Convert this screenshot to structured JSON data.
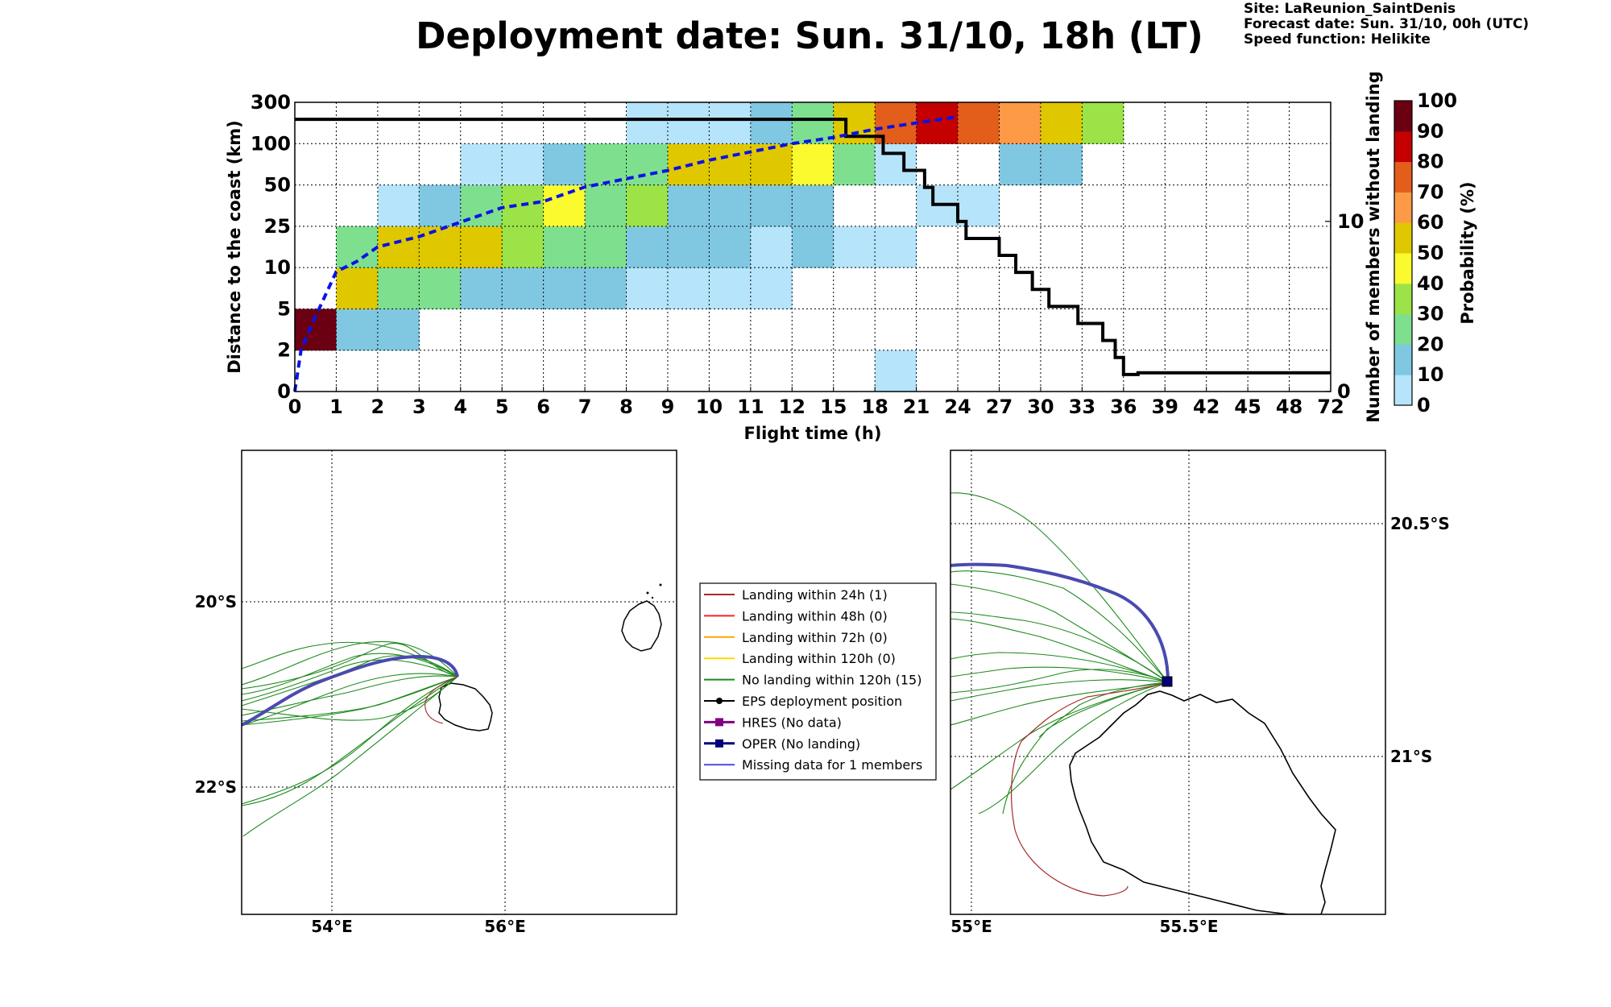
{
  "title": "Deployment date: Sun. 31/10, 18h (LT)",
  "site_info": {
    "site": "Site: LaReunion_SaintDenis",
    "forecast": "Forecast date: Sun. 31/10, 00h (UTC)",
    "speed": "Speed function: Helikite"
  },
  "chart_data": [
    {
      "type": "heatmap",
      "xlabel": "Flight time (h)",
      "ylabel": "Distance to the coast (km)",
      "y2label": "Number of members without landing",
      "colorbar_label": "Probability (%)",
      "x_ticks": [
        "0",
        "1",
        "2",
        "3",
        "4",
        "5",
        "6",
        "7",
        "8",
        "9",
        "10",
        "11",
        "12",
        "15",
        "18",
        "21",
        "24",
        "27",
        "30",
        "33",
        "36",
        "39",
        "42",
        "45",
        "48",
        "72"
      ],
      "y_ticks": [
        "0",
        "2",
        "5",
        "10",
        "25",
        "50",
        "100",
        "300"
      ],
      "y2_ticks": [
        "0",
        "10"
      ],
      "y2_range": [
        0,
        17
      ],
      "colorbar_ticks": [
        "0",
        "10",
        "20",
        "30",
        "40",
        "50",
        "60",
        "70",
        "80",
        "90",
        "100"
      ],
      "colorbar_colors": [
        "#b6e4fb",
        "#80c8e2",
        "#7ee08f",
        "#9be347",
        "#fafa2e",
        "#e0c800",
        "#fc9a46",
        "#e35d1b",
        "#c40000",
        "#6b0012"
      ],
      "grid": true,
      "cells": [
        {
          "x": 0,
          "y": 1,
          "v": 95
        },
        {
          "x": 1,
          "y": 1,
          "v": 15
        },
        {
          "x": 2,
          "y": 1,
          "v": 15
        },
        {
          "x": 1,
          "y": 2,
          "v": 55
        },
        {
          "x": 2,
          "y": 2,
          "v": 25
        },
        {
          "x": 3,
          "y": 2,
          "v": 25
        },
        {
          "x": 4,
          "y": 2,
          "v": 15
        },
        {
          "x": 5,
          "y": 2,
          "v": 15
        },
        {
          "x": 6,
          "y": 2,
          "v": 15
        },
        {
          "x": 7,
          "y": 2,
          "v": 15
        },
        {
          "x": 8,
          "y": 2,
          "v": 5
        },
        {
          "x": 9,
          "y": 2,
          "v": 5
        },
        {
          "x": 10,
          "y": 2,
          "v": 5
        },
        {
          "x": 11,
          "y": 2,
          "v": 5
        },
        {
          "x": 1,
          "y": 3,
          "v": 25
        },
        {
          "x": 2,
          "y": 3,
          "v": 55
        },
        {
          "x": 3,
          "y": 3,
          "v": 55
        },
        {
          "x": 4,
          "y": 3,
          "v": 55
        },
        {
          "x": 5,
          "y": 3,
          "v": 35
        },
        {
          "x": 6,
          "y": 3,
          "v": 25
        },
        {
          "x": 7,
          "y": 3,
          "v": 25
        },
        {
          "x": 8,
          "y": 3,
          "v": 15
        },
        {
          "x": 9,
          "y": 3,
          "v": 15
        },
        {
          "x": 10,
          "y": 3,
          "v": 15
        },
        {
          "x": 11,
          "y": 3,
          "v": 5
        },
        {
          "x": 12,
          "y": 3,
          "v": 15
        },
        {
          "x": 13,
          "y": 3,
          "v": 5
        },
        {
          "x": 14,
          "y": 3,
          "v": 5
        },
        {
          "x": 2,
          "y": 4,
          "v": 5
        },
        {
          "x": 3,
          "y": 4,
          "v": 15
        },
        {
          "x": 4,
          "y": 4,
          "v": 25
        },
        {
          "x": 5,
          "y": 4,
          "v": 35
        },
        {
          "x": 6,
          "y": 4,
          "v": 45
        },
        {
          "x": 7,
          "y": 4,
          "v": 25
        },
        {
          "x": 8,
          "y": 4,
          "v": 35
        },
        {
          "x": 9,
          "y": 4,
          "v": 15
        },
        {
          "x": 10,
          "y": 4,
          "v": 15
        },
        {
          "x": 11,
          "y": 4,
          "v": 15
        },
        {
          "x": 12,
          "y": 4,
          "v": 15
        },
        {
          "x": 15,
          "y": 4,
          "v": 5
        },
        {
          "x": 16,
          "y": 4,
          "v": 5
        },
        {
          "x": 4,
          "y": 5,
          "v": 5
        },
        {
          "x": 5,
          "y": 5,
          "v": 5
        },
        {
          "x": 6,
          "y": 5,
          "v": 15
        },
        {
          "x": 7,
          "y": 5,
          "v": 25
        },
        {
          "x": 8,
          "y": 5,
          "v": 25
        },
        {
          "x": 9,
          "y": 5,
          "v": 55
        },
        {
          "x": 10,
          "y": 5,
          "v": 55
        },
        {
          "x": 11,
          "y": 5,
          "v": 55
        },
        {
          "x": 12,
          "y": 5,
          "v": 45
        },
        {
          "x": 13,
          "y": 5,
          "v": 25
        },
        {
          "x": 14,
          "y": 5,
          "v": 5
        },
        {
          "x": 17,
          "y": 5,
          "v": 15
        },
        {
          "x": 18,
          "y": 5,
          "v": 15
        },
        {
          "x": 8,
          "y": 6,
          "v": 5
        },
        {
          "x": 9,
          "y": 6,
          "v": 5
        },
        {
          "x": 10,
          "y": 6,
          "v": 5
        },
        {
          "x": 11,
          "y": 6,
          "v": 15
        },
        {
          "x": 12,
          "y": 6,
          "v": 25
        },
        {
          "x": 13,
          "y": 6,
          "v": 55
        },
        {
          "x": 14,
          "y": 6,
          "v": 75
        },
        {
          "x": 15,
          "y": 6,
          "v": 85
        },
        {
          "x": 16,
          "y": 6,
          "v": 75
        },
        {
          "x": 17,
          "y": 6,
          "v": 65
        },
        {
          "x": 18,
          "y": 6,
          "v": 55
        },
        {
          "x": 19,
          "y": 6,
          "v": 35
        },
        {
          "x": 14,
          "y": 0,
          "v": 5
        }
      ],
      "series": [
        {
          "name_hidden": true,
          "kind": "median",
          "y_axis": "left",
          "style": "blue-dashed",
          "points": [
            [
              0,
              0
            ],
            [
              0.15,
              1
            ],
            [
              0.4,
              1.6
            ],
            [
              1,
              2.9
            ],
            [
              1.5,
              3.15
            ],
            [
              2,
              3.5
            ],
            [
              3,
              3.75
            ],
            [
              4,
              4.1
            ],
            [
              5,
              4.45
            ],
            [
              6,
              4.6
            ],
            [
              7,
              4.95
            ],
            [
              8,
              5.15
            ],
            [
              9,
              5.35
            ],
            [
              10,
              5.6
            ],
            [
              11,
              5.8
            ],
            [
              12,
              6.0
            ],
            [
              13,
              6.15
            ],
            [
              14,
              6.35
            ],
            [
              15,
              6.5
            ],
            [
              16,
              6.65
            ]
          ]
        },
        {
          "name_hidden": true,
          "kind": "members",
          "y_axis": "right",
          "style": "black-step",
          "points": [
            [
              0,
              16
            ],
            [
              13.3,
              16
            ],
            [
              13.3,
              15
            ],
            [
              14.2,
              15
            ],
            [
              14.2,
              14
            ],
            [
              14.7,
              14
            ],
            [
              14.7,
              13
            ],
            [
              15.2,
              13
            ],
            [
              15.2,
              12
            ],
            [
              15.4,
              12
            ],
            [
              15.4,
              11
            ],
            [
              16,
              11
            ],
            [
              16,
              10
            ],
            [
              16.2,
              10
            ],
            [
              16.2,
              9
            ],
            [
              17,
              9
            ],
            [
              17,
              8
            ],
            [
              17.4,
              8
            ],
            [
              17.4,
              7
            ],
            [
              17.8,
              7
            ],
            [
              17.8,
              6
            ],
            [
              18.2,
              6
            ],
            [
              18.2,
              5
            ],
            [
              18.9,
              5
            ],
            [
              18.9,
              4
            ],
            [
              19.5,
              4
            ],
            [
              19.5,
              3
            ],
            [
              19.8,
              3
            ],
            [
              19.8,
              2
            ],
            [
              20,
              2
            ],
            [
              20,
              1
            ],
            [
              20.35,
              1
            ],
            [
              20.35,
              1.1
            ],
            [
              25,
              1.1
            ]
          ]
        }
      ]
    },
    {
      "type": "map",
      "lon_ticks": [
        "54°E",
        "56°E"
      ],
      "lat_ticks": [
        "20°S",
        "22°S"
      ]
    },
    {
      "type": "map",
      "lon_ticks": [
        "55°E",
        "55.5°E"
      ],
      "lat_ticks": [
        "20.5°S",
        "21°S"
      ]
    }
  ],
  "legend": {
    "items": [
      {
        "label": "Landing within 24h (1)",
        "color": "#a52a2a",
        "marker": "none"
      },
      {
        "label": "Landing within 48h (0)",
        "color": "#ff2020",
        "marker": "none"
      },
      {
        "label": "Landing within 72h (0)",
        "color": "#ffa500",
        "marker": "none"
      },
      {
        "label": "Landing within 120h (0)",
        "color": "#ffd700",
        "marker": "none"
      },
      {
        "label": "No landing within 120h (15)",
        "color": "#1e8a1e",
        "marker": "none"
      },
      {
        "label": "EPS deployment position",
        "color": "#000000",
        "marker": "circle"
      },
      {
        "label": "HRES (No data)",
        "color": "#800080",
        "marker": "square"
      },
      {
        "label": "OPER (No landing)",
        "color": "#00007a",
        "marker": "square"
      },
      {
        "label": "Missing data for 1 members",
        "color": "#4a4ae8",
        "marker": "none"
      }
    ]
  }
}
